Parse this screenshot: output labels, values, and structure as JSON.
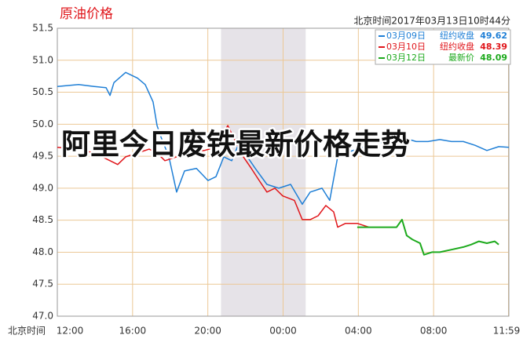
{
  "chart_data": {
    "type": "line",
    "title": "原油价格",
    "timestamp": "北京时间2017年03月13日10时44分",
    "overlay_text": "阿里今日废铁最新价格走势",
    "xlabel": "北京时间",
    "xlim": [
      0,
      24
    ],
    "xticks": [
      {
        "value": 0,
        "label": "12:00"
      },
      {
        "value": 4,
        "label": "16:00"
      },
      {
        "value": 8,
        "label": "20:00"
      },
      {
        "value": 12,
        "label": "00:00"
      },
      {
        "value": 16,
        "label": "04:00"
      },
      {
        "value": 20,
        "label": "08:00"
      },
      {
        "value": 23.98,
        "label": "11:59"
      }
    ],
    "ylim": [
      47,
      51.5
    ],
    "yticks": [
      {
        "value": 47,
        "label": "47.0"
      },
      47.5,
      {
        "value": 48,
        "label": "48.0"
      },
      48.5,
      {
        "value": 49,
        "label": "49.0"
      },
      49.5,
      {
        "value": 50,
        "label": "50.0"
      },
      50.5,
      {
        "value": 51,
        "label": "51.0"
      },
      51.5
    ],
    "grid": true,
    "shade": [
      8.7,
      13.2
    ],
    "series": [
      {
        "name": "03月09日",
        "legend_label": "纽约收盘",
        "legend_value": 49.62,
        "color": "#1f7fd6",
        "x": [
          0,
          1.13,
          1.96,
          2.59,
          2.8,
          3.01,
          3.63,
          4.26,
          4.67,
          5.09,
          5.3,
          5.51,
          5.93,
          6.34,
          6.76,
          7.39,
          8.01,
          8.43,
          8.85,
          9.27,
          9.69,
          10.1,
          10.52,
          11.14,
          11.77,
          12.4,
          13.02,
          13.44,
          14.07,
          14.48,
          14.9,
          15.32,
          15.94,
          16.57,
          17.4,
          18.24,
          19.07,
          19.7,
          20.33,
          20.95,
          21.58,
          22.2,
          22.83,
          23.46,
          24
        ],
        "values": [
          50.59,
          50.62,
          50.59,
          50.57,
          50.45,
          50.65,
          50.81,
          50.72,
          50.62,
          50.35,
          49.98,
          49.8,
          49.49,
          48.94,
          49.27,
          49.31,
          49.12,
          49.18,
          49.49,
          49.43,
          49.73,
          49.49,
          49.31,
          49.06,
          49.0,
          49.06,
          48.75,
          48.94,
          49.0,
          48.81,
          49.49,
          49.55,
          49.61,
          49.67,
          49.73,
          49.8,
          49.73,
          49.73,
          49.76,
          49.73,
          49.73,
          49.67,
          49.59,
          49.65,
          49.64
        ]
      },
      {
        "name": "03月10日",
        "legend_label": "纽约收盘",
        "legend_value": 48.39,
        "color": "#e0161b",
        "x": [
          0,
          1.13,
          1.96,
          2.8,
          3.21,
          3.63,
          4.26,
          4.88,
          5.3,
          5.72,
          6.34,
          6.97,
          7.81,
          8.43,
          9.06,
          9.47,
          9.89,
          10.31,
          10.73,
          11.14,
          11.56,
          11.98,
          12.6,
          13.02,
          13.44,
          13.86,
          14.27,
          14.69,
          14.9,
          15.32,
          15.94,
          16.57
        ],
        "values": [
          49.64,
          49.61,
          49.55,
          49.43,
          49.37,
          49.49,
          49.55,
          49.61,
          49.55,
          49.43,
          49.49,
          49.55,
          49.59,
          49.64,
          49.98,
          49.73,
          49.49,
          49.31,
          49.12,
          48.94,
          49.0,
          48.88,
          48.81,
          48.51,
          48.51,
          48.57,
          48.73,
          48.63,
          48.39,
          48.45,
          48.45,
          48.39
        ]
      },
      {
        "name": "03月12日",
        "legend_label": "最新价",
        "legend_value": 48.09,
        "color": "#1daa1d",
        "x": [
          15.94,
          18.03,
          18.32,
          18.57,
          18.86,
          19.28,
          19.49,
          19.91,
          20.33,
          20.95,
          21.58,
          22.0,
          22.41,
          22.83,
          23.25,
          23.46
        ],
        "values": [
          48.39,
          48.39,
          48.51,
          48.26,
          48.2,
          48.14,
          47.96,
          48.0,
          48.0,
          48.04,
          48.08,
          48.12,
          48.17,
          48.14,
          48.17,
          48.12
        ]
      }
    ]
  }
}
